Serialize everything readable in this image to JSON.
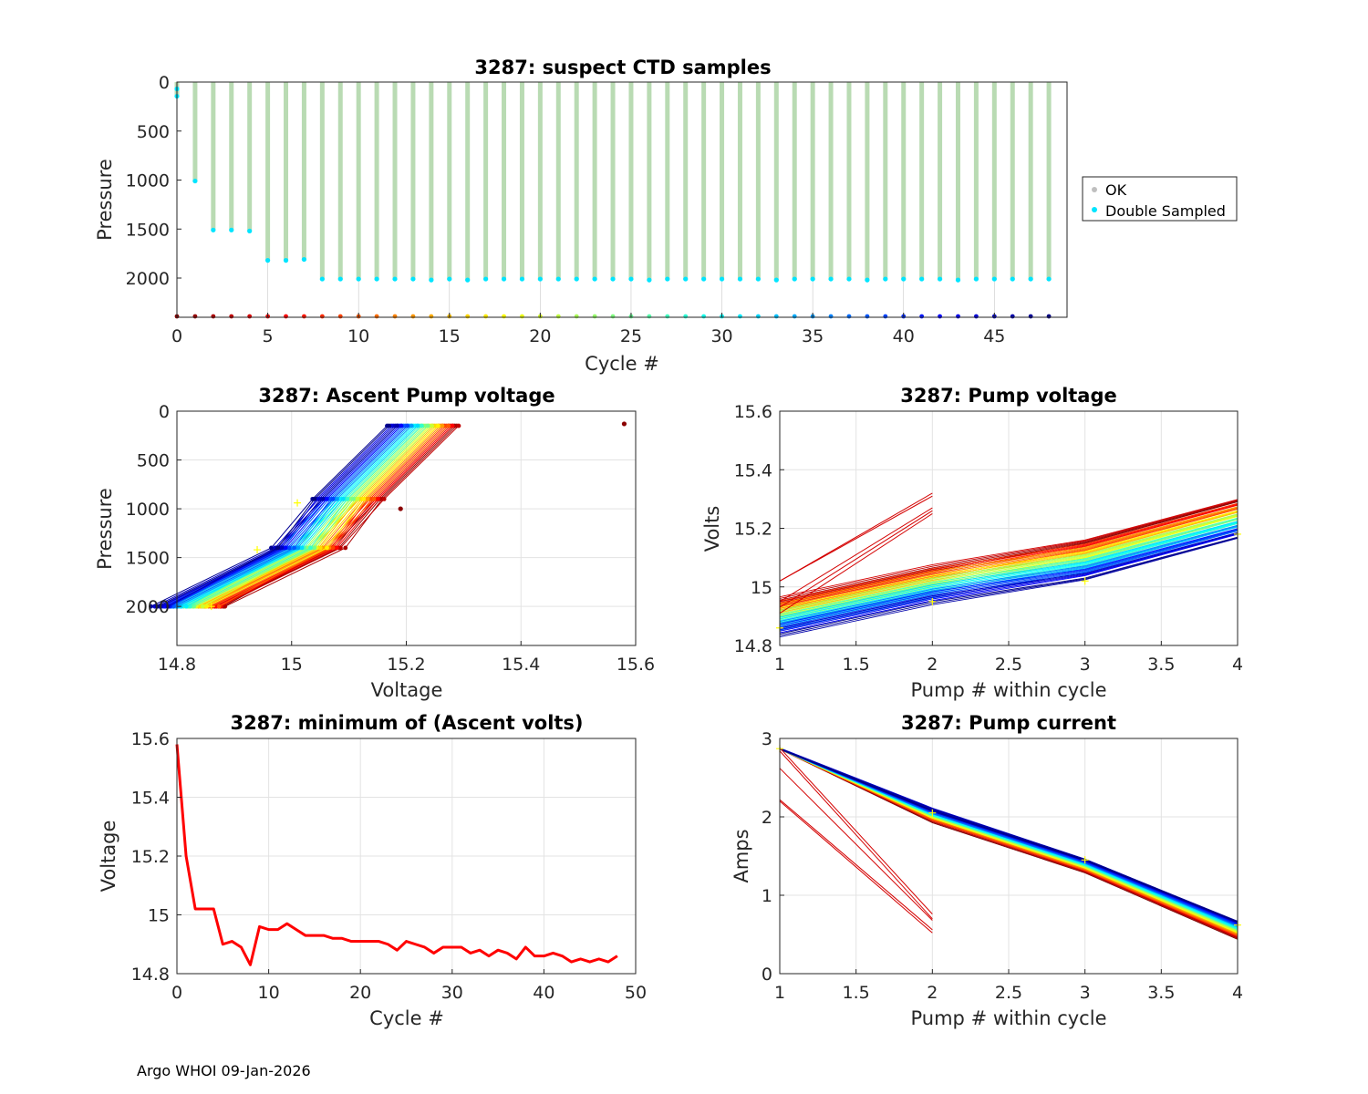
{
  "footer": "Argo WHOI 09-Jan-2026",
  "chart_data": [
    {
      "id": "suspect",
      "type": "scatter",
      "title": "3287: suspect CTD samples",
      "xlabel": "Cycle #",
      "ylabel": "Pressure",
      "xlim": [
        0,
        49
      ],
      "ylim": [
        2400,
        0
      ],
      "reversed_y": true,
      "xticks": [
        0,
        5,
        10,
        15,
        20,
        25,
        30,
        35,
        40,
        45
      ],
      "yticks": [
        0,
        500,
        1000,
        1500,
        2000
      ],
      "xtick_labels": [
        "0",
        "5",
        "10",
        "15",
        "20",
        "25",
        "30",
        "35",
        "40",
        "45"
      ],
      "ytick_labels": [
        "0",
        "500",
        "1000",
        "1500",
        "2000"
      ],
      "grid": false,
      "legend": {
        "position": "outside-right",
        "entries": [
          "OK",
          "Double Sampled"
        ]
      },
      "colors": {
        "ok": "#b9dbb3",
        "ok_marker": "#bfbfbf",
        "double": "#00e5ff"
      },
      "cycles": [
        0,
        1,
        2,
        3,
        4,
        5,
        6,
        7,
        8,
        9,
        10,
        11,
        12,
        13,
        14,
        15,
        16,
        17,
        18,
        19,
        20,
        21,
        22,
        23,
        24,
        25,
        26,
        27,
        28,
        29,
        30,
        31,
        32,
        33,
        34,
        35,
        36,
        37,
        38,
        39,
        40,
        41,
        42,
        43,
        44,
        45,
        46,
        47,
        48
      ],
      "max_pressure": [
        145,
        1010,
        1510,
        1510,
        1520,
        1820,
        1820,
        1810,
        2010,
        2010,
        2010,
        2010,
        2010,
        2010,
        2020,
        2010,
        2020,
        2010,
        2010,
        2010,
        2010,
        2010,
        2010,
        2010,
        2010,
        2010,
        2020,
        2010,
        2010,
        2010,
        2010,
        2010,
        2010,
        2020,
        2010,
        2010,
        2010,
        2010,
        2020,
        2010,
        2010,
        2010,
        2010,
        2020,
        2010,
        2010,
        2010,
        2010,
        2010
      ]
    },
    {
      "id": "ascent",
      "type": "line",
      "title": "3287: Ascent Pump voltage",
      "xlabel": "Voltage",
      "ylabel": "Pressure",
      "xlim": [
        14.8,
        15.6
      ],
      "ylim": [
        2400,
        0
      ],
      "reversed_y": true,
      "xticks": [
        14.8,
        15,
        15.2,
        15.4,
        15.6
      ],
      "yticks": [
        0,
        500,
        1000,
        1500,
        2000
      ],
      "xtick_labels": [
        "14.8",
        "15",
        "15.2",
        "15.4",
        "15.6"
      ],
      "ytick_labels": [
        "0",
        "500",
        "1000",
        "1500",
        "2000"
      ],
      "grid": true,
      "series_note": "one profile per cycle; pressures 2000, 1400, 900, 150 dbar; colour by cycle (jet)",
      "pressures": [
        2000,
        1400,
        900,
        150
      ],
      "outliers": [
        {
          "voltage": 15.58,
          "pressure": 130
        },
        {
          "voltage": 15.19,
          "pressure": 1000
        }
      ]
    },
    {
      "id": "pumpv",
      "type": "line",
      "title": "3287: Pump voltage",
      "xlabel": "Pump # within cycle",
      "ylabel": "Volts",
      "xlim": [
        1,
        4
      ],
      "ylim": [
        14.8,
        15.6
      ],
      "xticks": [
        1,
        1.5,
        2,
        2.5,
        3,
        3.5,
        4
      ],
      "yticks": [
        14.8,
        15,
        15.2,
        15.4,
        15.6
      ],
      "xtick_labels": [
        "1",
        "1.5",
        "2",
        "2.5",
        "3",
        "3.5",
        "4"
      ],
      "ytick_labels": [
        "14.8",
        "15",
        "15.2",
        "15.4",
        "15.6"
      ],
      "grid": true
    },
    {
      "id": "minv",
      "type": "line",
      "title": "3287: minimum of (Ascent volts)",
      "xlabel": "Cycle #",
      "ylabel": "Voltage",
      "xlim": [
        0,
        50
      ],
      "ylim": [
        14.8,
        15.6
      ],
      "xticks": [
        0,
        10,
        20,
        30,
        40,
        50
      ],
      "yticks": [
        14.8,
        15,
        15.2,
        15.4,
        15.6
      ],
      "xtick_labels": [
        "0",
        "10",
        "20",
        "30",
        "40",
        "50"
      ],
      "ytick_labels": [
        "14.8",
        "15",
        "15.2",
        "15.4",
        "15.6"
      ],
      "grid": true,
      "color": "#ff0000",
      "x": [
        0,
        1,
        2,
        3,
        4,
        5,
        6,
        7,
        8,
        9,
        10,
        11,
        12,
        13,
        14,
        15,
        16,
        17,
        18,
        19,
        20,
        21,
        22,
        23,
        24,
        25,
        26,
        27,
        28,
        29,
        30,
        31,
        32,
        33,
        34,
        35,
        36,
        37,
        38,
        39,
        40,
        41,
        42,
        43,
        44,
        45,
        46,
        47,
        48
      ],
      "y": [
        15.58,
        15.2,
        15.02,
        15.02,
        15.02,
        14.9,
        14.91,
        14.89,
        14.83,
        14.96,
        14.95,
        14.95,
        14.97,
        14.95,
        14.93,
        14.93,
        14.93,
        14.92,
        14.92,
        14.91,
        14.91,
        14.91,
        14.91,
        14.9,
        14.88,
        14.91,
        14.9,
        14.89,
        14.87,
        14.89,
        14.89,
        14.89,
        14.87,
        14.88,
        14.86,
        14.88,
        14.87,
        14.85,
        14.89,
        14.86,
        14.86,
        14.87,
        14.86,
        14.84,
        14.85,
        14.84,
        14.85,
        14.84,
        14.86
      ]
    },
    {
      "id": "pumpa",
      "type": "line",
      "title": "3287: Pump current",
      "xlabel": "Pump # within cycle",
      "ylabel": "Amps",
      "xlim": [
        1,
        4
      ],
      "ylim": [
        0,
        3
      ],
      "xticks": [
        1,
        1.5,
        2,
        2.5,
        3,
        3.5,
        4
      ],
      "yticks": [
        0,
        1,
        2,
        3
      ],
      "xtick_labels": [
        "1",
        "1.5",
        "2",
        "2.5",
        "3",
        "3.5",
        "4"
      ],
      "ytick_labels": [
        "0",
        "1",
        "2",
        "3"
      ],
      "grid": true
    }
  ]
}
